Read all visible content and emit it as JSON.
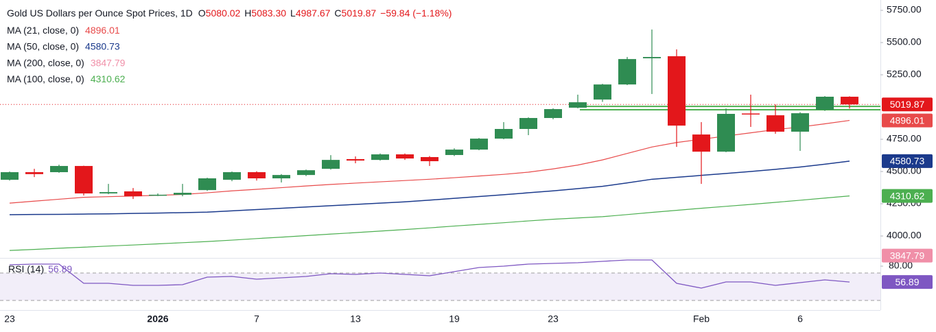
{
  "chart_data": {
    "type": "candlestick",
    "title": "Gold US Dollars per Ounce Spot Prices, 1D",
    "ohlc_prefixes": [
      "O",
      "H",
      "L",
      "C"
    ],
    "ohlc_value_labels": [
      "5080.02",
      "5083.30",
      "4987.67",
      "5019.87"
    ],
    "change_label": "−59.84 (−1.18%)",
    "categories": [
      "23",
      null,
      null,
      null,
      null,
      null,
      "2026",
      null,
      null,
      null,
      "7",
      null,
      null,
      null,
      "13",
      null,
      null,
      null,
      "19",
      null,
      null,
      null,
      "23",
      null,
      null,
      null,
      null,
      null,
      "Feb",
      null,
      null,
      null,
      "6",
      null,
      null
    ],
    "open": [
      4436,
      4495,
      4495,
      4543,
      4330,
      4346,
      4318,
      4320,
      4356,
      4436,
      4495,
      4447,
      4473,
      4521,
      4596,
      4590,
      4633,
      4612,
      4628,
      4670,
      4755,
      4830,
      4915,
      4995,
      5058,
      5175,
      5378,
      5394,
      4787,
      4654,
      4950,
      4936,
      4809,
      4979,
      5080.02
    ],
    "high": [
      4500,
      4521,
      4553,
      4545,
      4404,
      4372,
      4330,
      4404,
      4452,
      4500,
      4502,
      4480,
      4515,
      4627,
      4617,
      4640,
      4640,
      4620,
      4680,
      4760,
      4883,
      4920,
      4990,
      5096,
      5180,
      5388,
      5601,
      5447,
      4883,
      4989,
      5096,
      5021,
      4960,
      5085,
      5083.3
    ],
    "low": [
      4430,
      4457,
      4490,
      4314,
      4324,
      4287,
      4310,
      4308,
      4350,
      4425,
      4430,
      4415,
      4465,
      4515,
      4564,
      4585,
      4590,
      4543,
      4620,
      4665,
      4750,
      4782,
      4905,
      4990,
      5040,
      5170,
      5101,
      4691,
      4404,
      4650,
      4846,
      4793,
      4660,
      4970,
      4987.67
    ],
    "close": [
      4495,
      4480,
      4543,
      4330,
      4340,
      4308,
      4320,
      4335,
      4447,
      4495,
      4447,
      4473,
      4510,
      4590,
      4585,
      4633,
      4601,
      4580,
      4670,
      4755,
      4830,
      4915,
      4984,
      5037,
      5175,
      5372,
      5388,
      4856,
      4654,
      4947,
      4942,
      4809,
      4952,
      5080,
      5019.87
    ],
    "up_color": "#2f8c52",
    "down_color": "#e3171b",
    "ylim": [
      3830,
      5830
    ],
    "yticks": [
      {
        "value": 5750,
        "label": "5750.00"
      },
      {
        "value": 5500,
        "label": "5500.00"
      },
      {
        "value": 5250,
        "label": "5250.00"
      },
      {
        "value": 4750,
        "label": "4750.00"
      },
      {
        "value": 4500,
        "label": "4500.00"
      },
      {
        "value": 4250,
        "label": "4250.00"
      },
      {
        "value": 4000,
        "label": "4000.00"
      }
    ],
    "zone": [
      4979,
      5005
    ],
    "zone_color": "#4caf50",
    "overlays": [
      {
        "name": "MA (21, close, 0)",
        "color": "#e84a4a",
        "values": [
          4255,
          4270,
          4285,
          4300,
          4305,
          4310,
          4315,
          4322,
          4335,
          4350,
          4362,
          4375,
          4388,
          4400,
          4410,
          4420,
          4430,
          4440,
          4452,
          4465,
          4478,
          4495,
          4520,
          4550,
          4590,
          4640,
          4690,
          4725,
          4750,
          4775,
          4800,
          4825,
          4845,
          4870,
          4896.01
        ]
      },
      {
        "name": "MA (50, close, 0)",
        "color": "#1b3a8c",
        "values": [
          4165,
          4167,
          4168,
          4170,
          4172,
          4175,
          4178,
          4181,
          4185,
          4195,
          4205,
          4215,
          4225,
          4235,
          4245,
          4255,
          4265,
          4278,
          4292,
          4306,
          4320,
          4335,
          4350,
          4367,
          4385,
          4412,
          4440,
          4455,
          4470,
          4485,
          4500,
          4517,
          4535,
          4557,
          4580.73
        ]
      },
      {
        "name": "MA (200, close, 0)",
        "color": "#f08fa8",
        "last": 3847.79
      },
      {
        "name": "MA (100, close, 0)",
        "color": "#4caf50",
        "values": [
          3888,
          3896,
          3905,
          3913,
          3922,
          3930,
          3939,
          3948,
          3957,
          3968,
          3980,
          3991,
          4003,
          4015,
          4026,
          4038,
          4050,
          4063,
          4077,
          4090,
          4103,
          4117,
          4130,
          4140,
          4150,
          4166,
          4183,
          4199,
          4215,
          4230,
          4245,
          4261,
          4277,
          4294,
          4310.62
        ]
      }
    ],
    "rsi": {
      "name": "RSI (14)",
      "color": "#7e57c2",
      "values": [
        82,
        83,
        83,
        55,
        55,
        52,
        52,
        53,
        64,
        65,
        61,
        63,
        65,
        69,
        68,
        70,
        68,
        66,
        72,
        78,
        80,
        83,
        84,
        85,
        87,
        89,
        89,
        55,
        48,
        57,
        57,
        52,
        56,
        60,
        56.89
      ],
      "ylim": [
        16,
        92
      ],
      "yticks": [
        {
          "value": 80,
          "label": "80.00"
        }
      ],
      "band": [
        30,
        70
      ]
    }
  }
}
